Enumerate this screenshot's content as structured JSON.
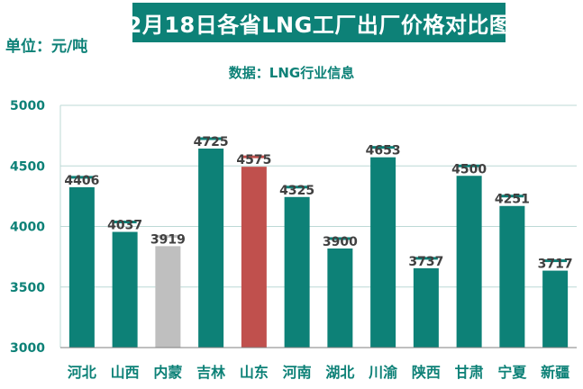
{
  "header": {
    "title": "2月18日各省LNG工厂出厂价格对比图",
    "unit": "单位：元/吨",
    "source": "数据：LNG行业信息"
  },
  "colors": {
    "primary": "#0d8177",
    "highlight": "#c0504d",
    "muted": "#bfbfbf",
    "gridline": "#bcd9d6",
    "label": "#404040"
  },
  "chart_data": {
    "type": "bar",
    "title": "2月18日各省LNG工厂出厂价格对比图",
    "ylabel": "单位：元/吨",
    "ylim": [
      3000,
      5000
    ],
    "yticks": [
      3000,
      3500,
      4000,
      4500,
      5000
    ],
    "grid": true,
    "categories": [
      "河北",
      "山西",
      "内蒙",
      "吉林",
      "山东",
      "河南",
      "湖北",
      "川渝",
      "陕西",
      "甘肃",
      "宁夏",
      "新疆"
    ],
    "values": [
      4406,
      4037,
      3919,
      4725,
      4575,
      4325,
      3900,
      4653,
      3737,
      4500,
      4251,
      3717
    ],
    "bar_colors": [
      "primary",
      "primary",
      "muted",
      "primary",
      "highlight",
      "primary",
      "primary",
      "primary",
      "primary",
      "primary",
      "primary",
      "primary"
    ]
  }
}
